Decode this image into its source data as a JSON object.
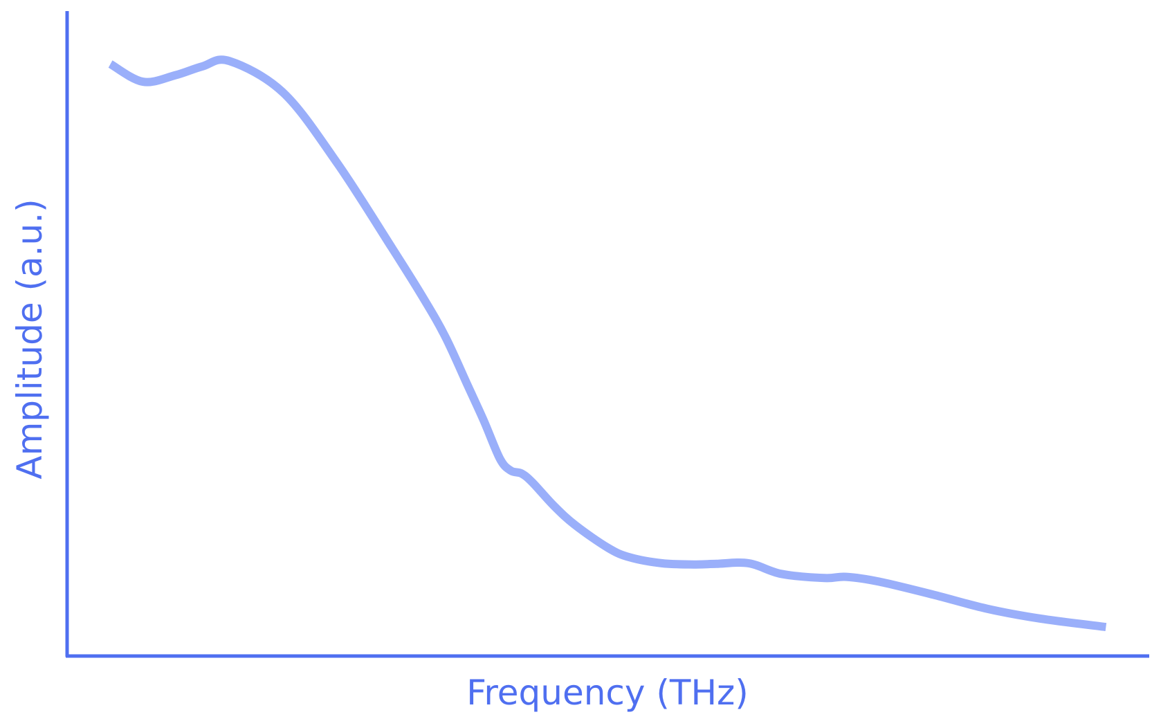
{
  "chart_data": {
    "type": "line",
    "title": "",
    "xlabel": "Frequency (THz)",
    "ylabel": "Amplitude (a.u.)",
    "xlim": [
      0,
      1
    ],
    "ylim": [
      0,
      1
    ],
    "grid": false,
    "tick_labels": false,
    "series": [
      {
        "color": "#9aaffa",
        "x": [
          0.04,
          0.07,
          0.1,
          0.125,
          0.15,
          0.2,
          0.25,
          0.3,
          0.33,
          0.35,
          0.37,
          0.385,
          0.4,
          0.41,
          0.42,
          0.43,
          0.45,
          0.47,
          0.5,
          0.52,
          0.55,
          0.58,
          0.6,
          0.63,
          0.66,
          0.7,
          0.72,
          0.75,
          0.8,
          0.85,
          0.9,
          0.96
        ],
        "y": [
          0.954,
          0.924,
          0.935,
          0.95,
          0.959,
          0.905,
          0.785,
          0.643,
          0.555,
          0.49,
          0.41,
          0.35,
          0.285,
          0.265,
          0.26,
          0.245,
          0.205,
          0.172,
          0.134,
          0.118,
          0.108,
          0.106,
          0.107,
          0.108,
          0.09,
          0.083,
          0.085,
          0.077,
          0.055,
          0.031,
          0.014,
          0.0
        ]
      }
    ]
  },
  "colors": {
    "axis": "#4f6ff0",
    "line": "#9aaffa"
  }
}
